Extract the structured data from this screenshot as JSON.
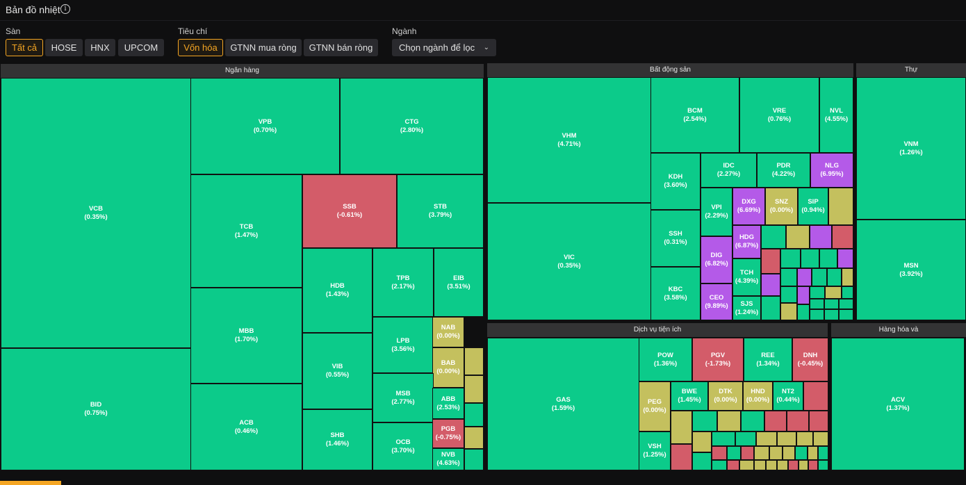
{
  "title": "Bản đồ nhiệt",
  "filters": {
    "exchange": {
      "label": "Sàn",
      "options": [
        "Tất cả",
        "HOSE",
        "HNX",
        "UPCOM"
      ],
      "selected": "Tất cả"
    },
    "criteria": {
      "label": "Tiêu chí",
      "options": [
        "Vốn hóa",
        "GTNN mua ròng",
        "GTNN bán ròng"
      ],
      "selected": "Vốn hóa"
    },
    "sector": {
      "label": "Ngành",
      "value": "Chọn ngành để lọc"
    }
  },
  "colors": {
    "up": "#0ccb8a",
    "down": "#d35c69",
    "flat": "#c4c05e",
    "ceiling": "#b45ae8",
    "accent": "#f5a623"
  },
  "sectors": [
    {
      "name": "Ngân hàng",
      "stocks": [
        {
          "code": "VCB",
          "change": "(0.35%)",
          "status": "up"
        },
        {
          "code": "BID",
          "change": "(0.75%)",
          "status": "up"
        },
        {
          "code": "VPB",
          "change": "(0.70%)",
          "status": "up"
        },
        {
          "code": "CTG",
          "change": "(2.80%)",
          "status": "up"
        },
        {
          "code": "TCB",
          "change": "(1.47%)",
          "status": "up"
        },
        {
          "code": "SSB",
          "change": "(-0.61%)",
          "status": "down"
        },
        {
          "code": "STB",
          "change": "(3.79%)",
          "status": "up"
        },
        {
          "code": "MBB",
          "change": "(1.70%)",
          "status": "up"
        },
        {
          "code": "ACB",
          "change": "(0.46%)",
          "status": "up"
        },
        {
          "code": "HDB",
          "change": "(1.43%)",
          "status": "up"
        },
        {
          "code": "TPB",
          "change": "(2.17%)",
          "status": "up"
        },
        {
          "code": "EIB",
          "change": "(3.51%)",
          "status": "up"
        },
        {
          "code": "VIB",
          "change": "(0.55%)",
          "status": "up"
        },
        {
          "code": "LPB",
          "change": "(3.56%)",
          "status": "up"
        },
        {
          "code": "NAB",
          "change": "(0.00%)",
          "status": "flat"
        },
        {
          "code": "BAB",
          "change": "(0.00%)",
          "status": "flat"
        },
        {
          "code": "MSB",
          "change": "(2.77%)",
          "status": "up"
        },
        {
          "code": "ABB",
          "change": "(2.53%)",
          "status": "up"
        },
        {
          "code": "SHB",
          "change": "(1.46%)",
          "status": "up"
        },
        {
          "code": "OCB",
          "change": "(3.70%)",
          "status": "up"
        },
        {
          "code": "PGB",
          "change": "(-0.75%)",
          "status": "down"
        },
        {
          "code": "NVB",
          "change": "(4.63%)",
          "status": "up"
        }
      ]
    },
    {
      "name": "Bất động sản",
      "stocks": [
        {
          "code": "VHM",
          "change": "(4.71%)",
          "status": "up"
        },
        {
          "code": "VIC",
          "change": "(0.35%)",
          "status": "up"
        },
        {
          "code": "BCM",
          "change": "(2.54%)",
          "status": "up"
        },
        {
          "code": "VRE",
          "change": "(0.76%)",
          "status": "up"
        },
        {
          "code": "NVL",
          "change": "(4.55%)",
          "status": "up"
        },
        {
          "code": "KDH",
          "change": "(3.60%)",
          "status": "up"
        },
        {
          "code": "IDC",
          "change": "(2.27%)",
          "status": "up"
        },
        {
          "code": "PDR",
          "change": "(4.22%)",
          "status": "up"
        },
        {
          "code": "NLG",
          "change": "(6.95%)",
          "status": "ceiling"
        },
        {
          "code": "VPI",
          "change": "(2.29%)",
          "status": "up"
        },
        {
          "code": "DXG",
          "change": "(6.69%)",
          "status": "ceiling"
        },
        {
          "code": "SNZ",
          "change": "(0.00%)",
          "status": "flat"
        },
        {
          "code": "SIP",
          "change": "(0.94%)",
          "status": "up"
        },
        {
          "code": "SSH",
          "change": "(0.31%)",
          "status": "up"
        },
        {
          "code": "HDG",
          "change": "(6.87%)",
          "status": "ceiling"
        },
        {
          "code": "DIG",
          "change": "(6.82%)",
          "status": "ceiling"
        },
        {
          "code": "TCH",
          "change": "(4.39%)",
          "status": "up"
        },
        {
          "code": "KBC",
          "change": "(3.58%)",
          "status": "up"
        },
        {
          "code": "CEO",
          "change": "(9.89%)",
          "status": "ceiling"
        },
        {
          "code": "SJS",
          "change": "(1.24%)",
          "status": "up"
        }
      ]
    },
    {
      "name": "Thự",
      "stocks": [
        {
          "code": "VNM",
          "change": "(1.26%)",
          "status": "up"
        },
        {
          "code": "MSN",
          "change": "(3.92%)",
          "status": "up"
        }
      ]
    },
    {
      "name": "Dịch vụ tiện ích",
      "stocks": [
        {
          "code": "GAS",
          "change": "(1.59%)",
          "status": "up"
        },
        {
          "code": "POW",
          "change": "(1.36%)",
          "status": "up"
        },
        {
          "code": "PGV",
          "change": "(-1.73%)",
          "status": "down"
        },
        {
          "code": "REE",
          "change": "(1.34%)",
          "status": "up"
        },
        {
          "code": "DNH",
          "change": "(-0.45%)",
          "status": "down"
        },
        {
          "code": "PEG",
          "change": "(0.00%)",
          "status": "flat"
        },
        {
          "code": "BWE",
          "change": "(1.45%)",
          "status": "up"
        },
        {
          "code": "DTK",
          "change": "(0.00%)",
          "status": "flat"
        },
        {
          "code": "HND",
          "change": "(0.00%)",
          "status": "flat"
        },
        {
          "code": "NT2",
          "change": "(0.44%)",
          "status": "up"
        },
        {
          "code": "VSH",
          "change": "(1.25%)",
          "status": "up"
        }
      ]
    },
    {
      "name": "Hàng hóa và",
      "stocks": [
        {
          "code": "ACV",
          "change": "(1.37%)",
          "status": "up"
        }
      ]
    }
  ]
}
